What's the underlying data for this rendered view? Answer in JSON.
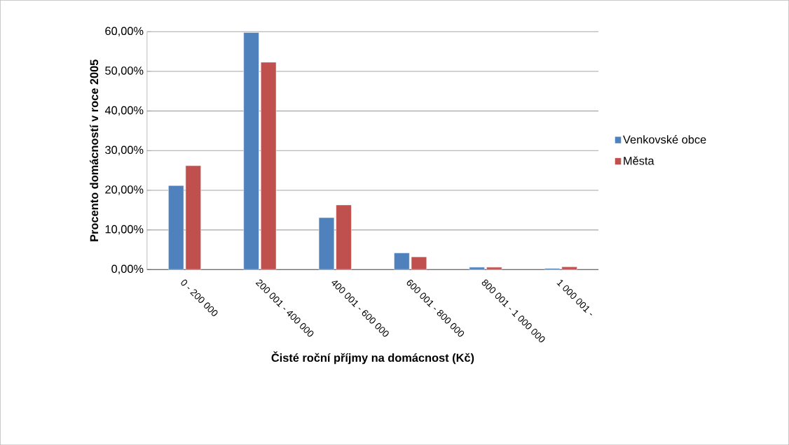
{
  "chart_data": {
    "type": "bar",
    "xlabel": "Čisté roční příjmy na domácnost (Kč)",
    "ylabel": "Procento domácností v roce 2005",
    "categories": [
      "0 - 200 000",
      "200 001 - 400 000",
      "400 001 - 600 000",
      "600 001 - 800 000",
      "800 001 - 1 000 000",
      "1 000 001 -"
    ],
    "series": [
      {
        "name": "Venkovské obce",
        "color": "#4f81bd",
        "values": [
          21.2,
          59.8,
          13.1,
          4.2,
          0.6,
          0.3
        ]
      },
      {
        "name": "Města",
        "color": "#c0504d",
        "values": [
          26.2,
          52.3,
          16.3,
          3.2,
          0.6,
          0.7
        ]
      }
    ],
    "ylim": [
      0,
      60
    ],
    "yticks": [
      {
        "value": 0,
        "label": "0,00%"
      },
      {
        "value": 10,
        "label": "10,00%"
      },
      {
        "value": 20,
        "label": "20,00%"
      },
      {
        "value": 30,
        "label": "30,00%"
      },
      {
        "value": 40,
        "label": "40,00%"
      },
      {
        "value": 50,
        "label": "50,00%"
      },
      {
        "value": 60,
        "label": "60,00%"
      }
    ],
    "grid": "y",
    "legend": "right"
  }
}
